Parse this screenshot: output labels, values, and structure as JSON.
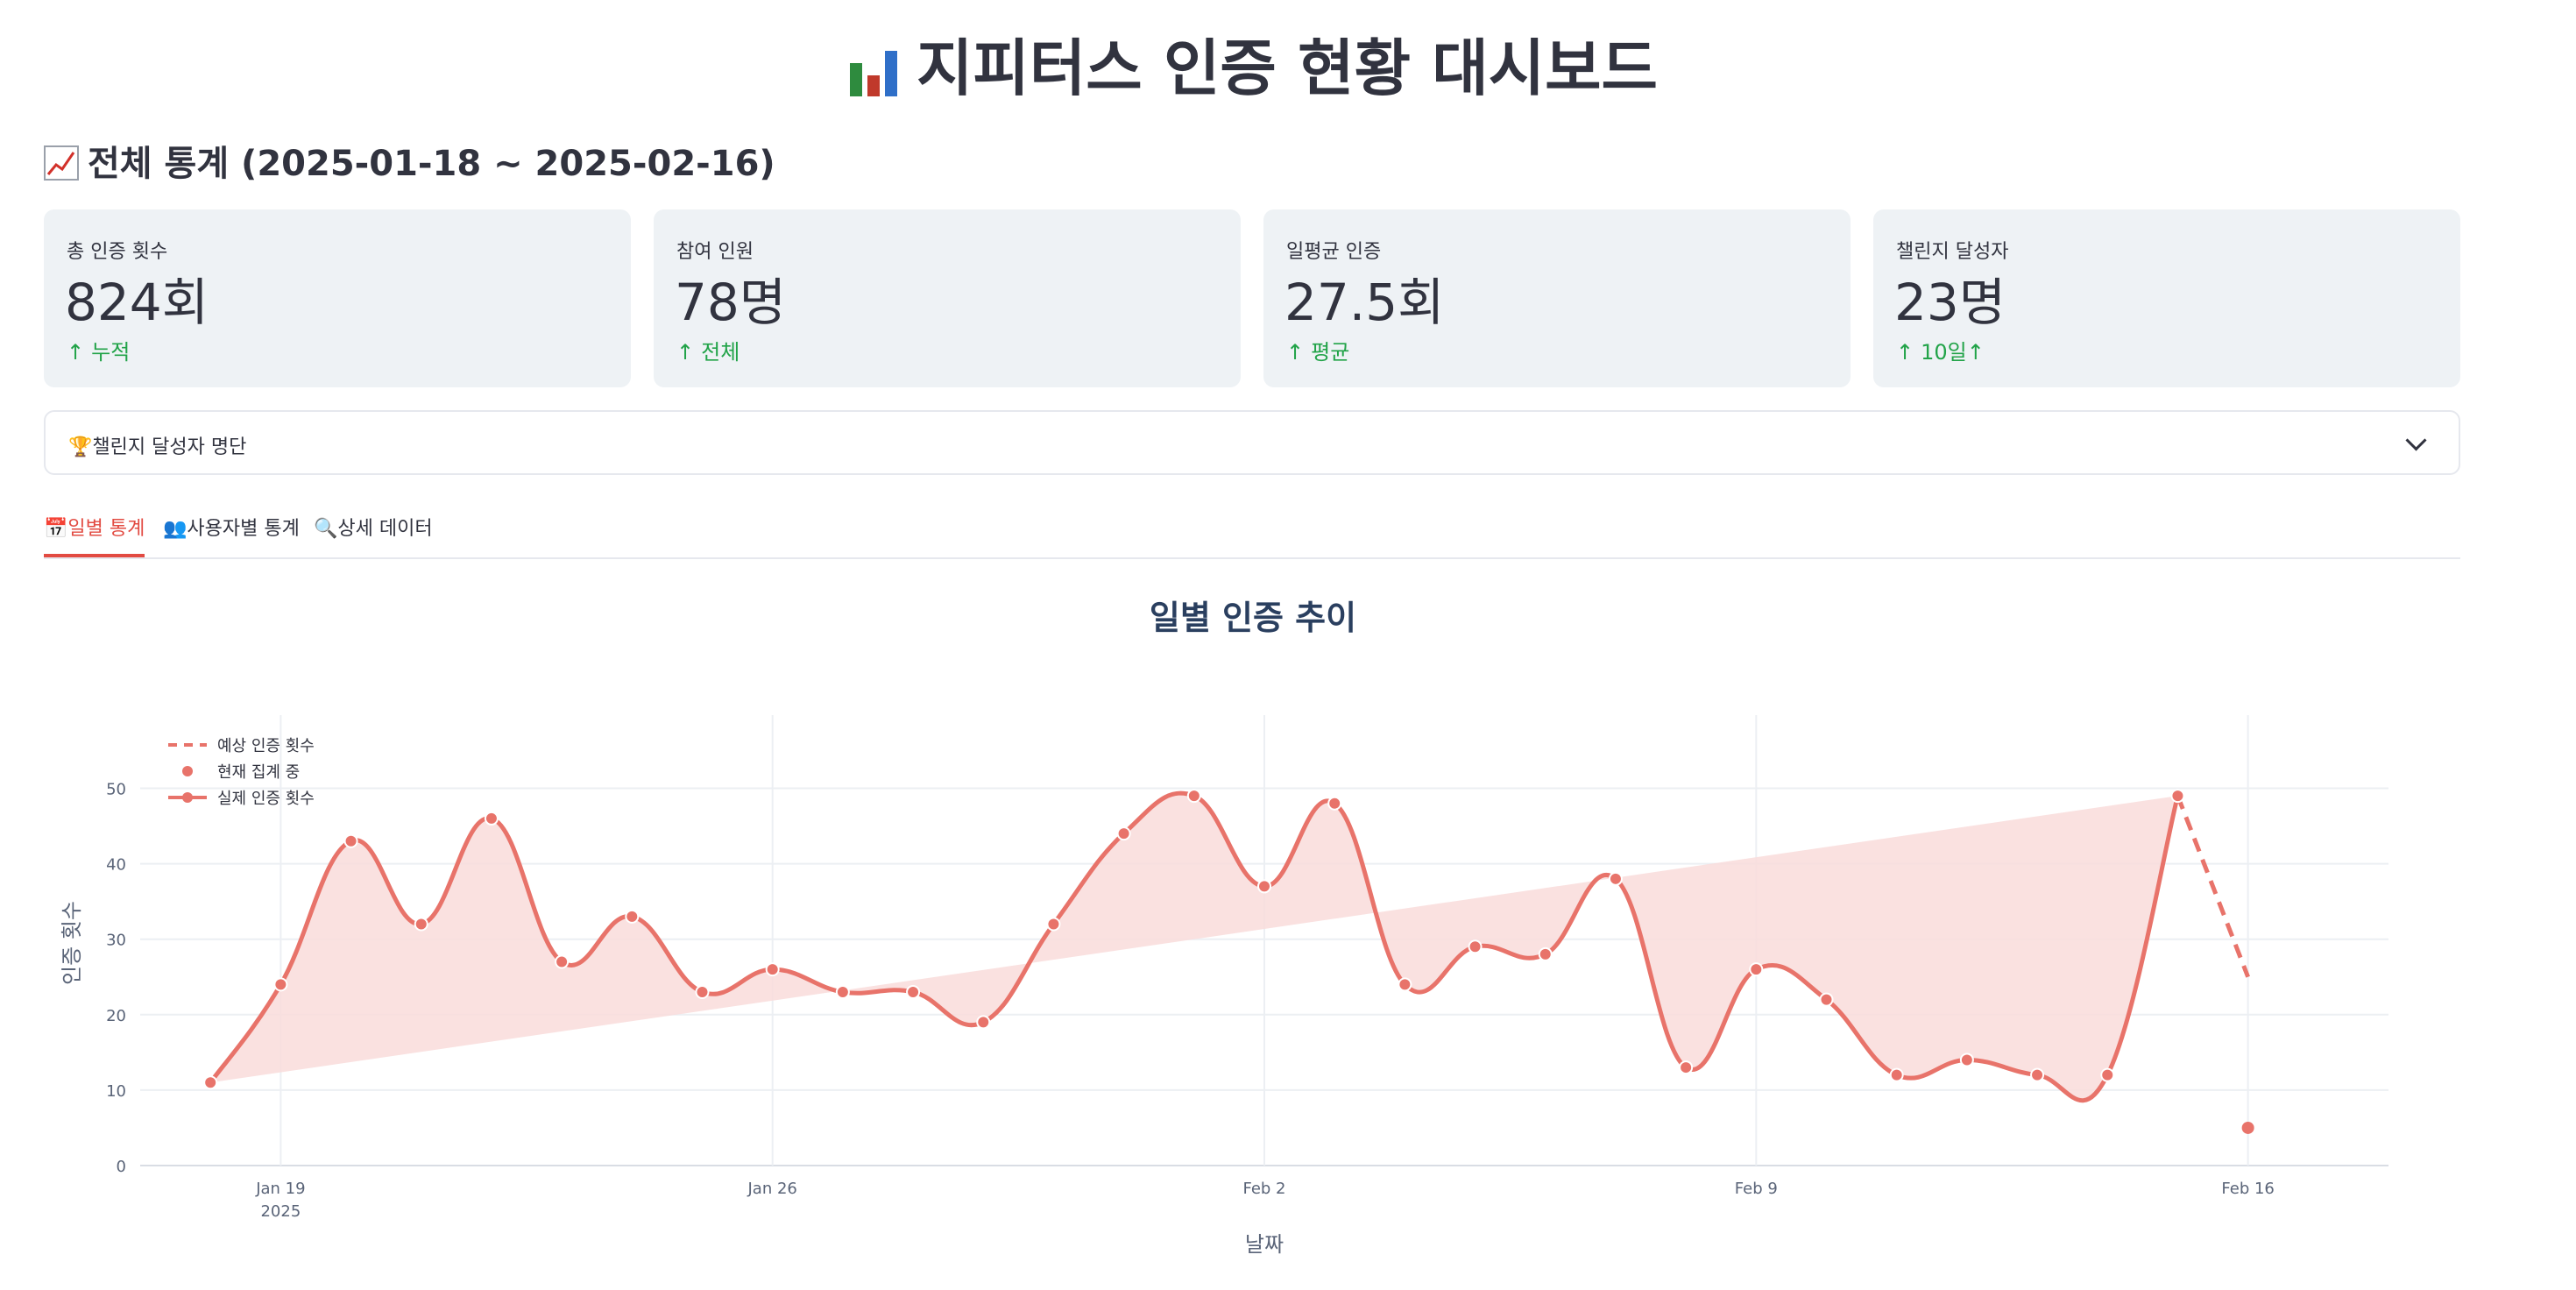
{
  "page": {
    "title": "지피터스 인증 현황 대시보드",
    "title_icon": "bar-chart-icon",
    "section_title": "전체 통계 (2025-01-18 ~ 2025-02-16)",
    "section_icon": "trending-chart-icon"
  },
  "metrics": [
    {
      "label": "총 인증 횟수",
      "value": "824회",
      "delta": "누적",
      "delta_icon": "arrow-up-icon"
    },
    {
      "label": "참여 인원",
      "value": "78명",
      "delta": "전체",
      "delta_icon": "arrow-up-icon"
    },
    {
      "label": "일평균 인증",
      "value": "27.5회",
      "delta": "평균",
      "delta_icon": "arrow-up-icon"
    },
    {
      "label": "챌린지 달성자",
      "value": "23명",
      "delta": "10일↑",
      "delta_icon": "arrow-up-icon"
    }
  ],
  "expander": {
    "label": "챌린지 달성자 명단",
    "icon": "trophy-icon",
    "state": "collapsed"
  },
  "tabs": [
    {
      "label": "일별 통계",
      "icon": "calendar-icon",
      "active": true
    },
    {
      "label": "사용자별 통계",
      "icon": "users-icon",
      "active": false
    },
    {
      "label": "상세 데이터",
      "icon": "magnifier-icon",
      "active": false
    }
  ],
  "colors": {
    "accent": "#e24b42",
    "series": "#e8736a",
    "fill": "#f9dcdb",
    "positive": "#21a348",
    "metric_bg": "#eef2f5"
  },
  "chart_data": {
    "type": "line",
    "title": "일별 인증 추이",
    "xlabel": "날짜",
    "ylabel": "인증 횟수",
    "ylim": [
      0,
      59
    ],
    "yticks": [
      0,
      10,
      20,
      30,
      40,
      50
    ],
    "xticks": [
      {
        "date": "2025-01-19",
        "label": "Jan 19",
        "sublabel": "2025"
      },
      {
        "date": "2025-01-26",
        "label": "Jan 26"
      },
      {
        "date": "2025-02-02",
        "label": "Feb 2"
      },
      {
        "date": "2025-02-09",
        "label": "Feb 9"
      },
      {
        "date": "2025-02-16",
        "label": "Feb 16"
      }
    ],
    "xrange": [
      "2025-01-17",
      "2025-02-18"
    ],
    "grid": true,
    "legend_position": "top-left",
    "legend": [
      "예상 인증 횟수",
      "현재 집계 중",
      "실제 인증 횟수"
    ],
    "series": [
      {
        "name": "실제 인증 횟수",
        "style": "line+markers",
        "x": [
          "2025-01-18",
          "2025-01-19",
          "2025-01-20",
          "2025-01-21",
          "2025-01-22",
          "2025-01-23",
          "2025-01-24",
          "2025-01-25",
          "2025-01-26",
          "2025-01-27",
          "2025-01-28",
          "2025-01-29",
          "2025-01-30",
          "2025-01-31",
          "2025-02-01",
          "2025-02-02",
          "2025-02-03",
          "2025-02-04",
          "2025-02-05",
          "2025-02-06",
          "2025-02-07",
          "2025-02-08",
          "2025-02-09",
          "2025-02-10",
          "2025-02-11",
          "2025-02-12",
          "2025-02-13",
          "2025-02-14",
          "2025-02-15"
        ],
        "values": [
          11,
          24,
          43,
          32,
          46,
          27,
          33,
          23,
          26,
          23,
          23,
          19,
          32,
          44,
          49,
          37,
          48,
          24,
          29,
          28,
          38,
          13,
          26,
          22,
          12,
          14,
          12,
          12,
          49
        ]
      },
      {
        "name": "예상 인증 횟수",
        "style": "dashed",
        "x": [
          "2025-02-15",
          "2025-02-16"
        ],
        "values": [
          49,
          25
        ]
      },
      {
        "name": "현재 집계 중",
        "style": "markers",
        "x": [
          "2025-02-16"
        ],
        "values": [
          5
        ]
      }
    ]
  }
}
